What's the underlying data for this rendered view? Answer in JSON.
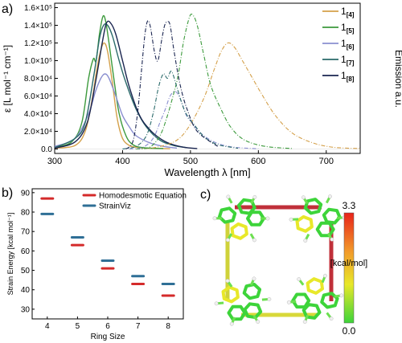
{
  "panels": {
    "a": "a)",
    "b": "b)",
    "c": "c)"
  },
  "chart_data": [
    {
      "type": "line",
      "panel": "a)",
      "xlabel": "Wavelength λ [nm]",
      "ylabel_left": "ε [L mol⁻¹ cm⁻¹]",
      "ylabel_right": "Emission a.u.",
      "xlim": [
        300,
        750
      ],
      "ylim": [
        -5000,
        165000
      ],
      "xticks": [
        300,
        400,
        500,
        600,
        700
      ],
      "yticks": [
        {
          "v": 0,
          "label": "0.0"
        },
        {
          "v": 20000,
          "label": "2.0×10⁴"
        },
        {
          "v": 40000,
          "label": "4.0×10⁴"
        },
        {
          "v": 60000,
          "label": "6.0×10⁴"
        },
        {
          "v": 80000,
          "label": "8.0×10⁴"
        },
        {
          "v": 100000,
          "label": "1.0×10⁵"
        },
        {
          "v": 120000,
          "label": "1.2×10⁵"
        },
        {
          "v": 140000,
          "label": "1.4×10⁵"
        },
        {
          "v": 160000,
          "label": "1.6×10⁵"
        }
      ],
      "legend_position": "right",
      "legend": [
        {
          "base": "1",
          "sub": "[4]",
          "color": "#d4a04a"
        },
        {
          "base": "1",
          "sub": "[5]",
          "color": "#3c9a3c"
        },
        {
          "base": "1",
          "sub": "[6]",
          "color": "#8a8fd0"
        },
        {
          "base": "1",
          "sub": "[7]",
          "color": "#2a6a6a"
        },
        {
          "base": "1",
          "sub": "[8]",
          "color": "#1a2550"
        }
      ],
      "absorption": [
        {
          "series": "1[4]",
          "color": "#d4a04a",
          "x": [
            300,
            330,
            345,
            355,
            362,
            368,
            373,
            378,
            385,
            392,
            400,
            410,
            420,
            440,
            470
          ],
          "y": [
            1000,
            4000,
            20000,
            55000,
            90000,
            112000,
            120000,
            110000,
            75000,
            35000,
            12000,
            4000,
            2000,
            800,
            300
          ]
        },
        {
          "series": "1[5]",
          "color": "#3c9a3c",
          "x": [
            300,
            325,
            340,
            350,
            357,
            361,
            366,
            371,
            375,
            380,
            388,
            395,
            405,
            415,
            430,
            460
          ],
          "y": [
            1500,
            8000,
            30000,
            80000,
            102000,
            100000,
            130000,
            150000,
            145000,
            120000,
            75000,
            40000,
            15000,
            5000,
            1500,
            500
          ]
        },
        {
          "series": "1[6]",
          "color": "#8a8fd0",
          "x": [
            300,
            330,
            350,
            360,
            368,
            374,
            380,
            390,
            400,
            410,
            420,
            440,
            460,
            480
          ],
          "y": [
            3000,
            12000,
            40000,
            65000,
            80000,
            85000,
            80000,
            60000,
            38000,
            25000,
            15000,
            7000,
            3000,
            1000
          ]
        },
        {
          "series": "1[7]",
          "color": "#2a6a6a",
          "x": [
            300,
            330,
            345,
            358,
            366,
            372,
            378,
            385,
            395,
            405,
            420,
            435,
            455,
            475,
            495
          ],
          "y": [
            1500,
            12000,
            30000,
            85000,
            125000,
            140000,
            140000,
            128000,
            100000,
            75000,
            45000,
            25000,
            10000,
            4000,
            1500
          ]
        },
        {
          "series": "1[8]",
          "color": "#1a2550",
          "x": [
            300,
            330,
            348,
            360,
            370,
            376,
            382,
            390,
            400,
            410,
            425,
            440,
            455,
            470,
            490,
            510
          ],
          "y": [
            1000,
            8000,
            30000,
            75000,
            120000,
            142000,
            143000,
            130000,
            100000,
            70000,
            38000,
            22000,
            12000,
            6000,
            2000,
            500
          ]
        }
      ],
      "emission": [
        {
          "series": "1[4]",
          "color": "#d4a04a",
          "x": [
            420,
            450,
            480,
            500,
            520,
            535,
            545,
            555,
            565,
            578,
            590,
            605,
            625,
            650,
            680,
            710,
            750
          ],
          "y": [
            0,
            2000,
            10000,
            28000,
            58000,
            90000,
            110000,
            120000,
            115000,
            98000,
            82000,
            62000,
            38000,
            18000,
            7000,
            2000,
            500
          ]
        },
        {
          "series": "1[5]",
          "color": "#3c9a3c",
          "x": [
            420,
            440,
            455,
            465,
            475,
            482,
            490,
            498,
            503,
            510,
            520,
            530,
            545,
            560,
            580,
            610,
            650
          ],
          "y": [
            0,
            2000,
            15000,
            35000,
            62000,
            84000,
            122000,
            148000,
            152000,
            140000,
            105000,
            72000,
            45000,
            24000,
            10000,
            3000,
            500
          ]
        },
        {
          "series": "1[6]",
          "color": "#8a8fd0",
          "x": [
            410,
            430,
            445,
            455,
            463,
            470,
            478,
            486,
            494,
            502,
            515,
            535,
            560,
            600
          ],
          "y": [
            0,
            2000,
            12000,
            30000,
            45000,
            60000,
            65000,
            55000,
            38000,
            30000,
            18000,
            8000,
            2500,
            300
          ]
        },
        {
          "series": "1[7]",
          "color": "#2a6a6a",
          "x": [
            400,
            420,
            435,
            445,
            453,
            460,
            466,
            472,
            480,
            488,
            495,
            505,
            520,
            540,
            570
          ],
          "y": [
            0,
            3000,
            15000,
            40000,
            70000,
            85000,
            80000,
            88000,
            70000,
            50000,
            38000,
            28000,
            14000,
            5000,
            800
          ]
        },
        {
          "series": "1[8]",
          "color": "#1a2550",
          "x": [
            405,
            415,
            422,
            428,
            433,
            437,
            441,
            447,
            452,
            458,
            462,
            466,
            470,
            476,
            485,
            495,
            510,
            540
          ],
          "y": [
            0,
            8000,
            40000,
            90000,
            130000,
            145000,
            138000,
            110000,
            100000,
            125000,
            140000,
            144000,
            140000,
            110000,
            72000,
            45000,
            20000,
            3000
          ]
        }
      ]
    },
    {
      "type": "scatter",
      "panel": "b)",
      "marker": "horizontal-dash",
      "xlabel": "Ring Size",
      "ylabel": "Strain Energy [kcal mol⁻¹]",
      "xlim": [
        3.5,
        8.5
      ],
      "ylim": [
        25,
        92
      ],
      "xticks": [
        4,
        5,
        6,
        7,
        8
      ],
      "yticks": [
        30,
        40,
        50,
        60,
        70,
        80,
        90
      ],
      "legend_position": "top-right",
      "series": [
        {
          "name": "Homodesmotic Equation",
          "color": "#d42a2a",
          "x": [
            4,
            5,
            6,
            7,
            8
          ],
          "values": [
            87,
            63,
            51,
            43,
            37
          ]
        },
        {
          "name": "StrainViz",
          "color": "#2f6f96",
          "x": [
            4,
            5,
            6,
            7,
            8
          ],
          "values": [
            79,
            67,
            55,
            47,
            43
          ]
        }
      ]
    }
  ],
  "panel_c": {
    "colorbar_max": "3.3",
    "colorbar_min": "0.0",
    "colorbar_unit": "[kcal/mol]",
    "colorbar_colors": [
      "#e8231a",
      "#f29a2a",
      "#e8e82a",
      "#3dd43a"
    ]
  }
}
